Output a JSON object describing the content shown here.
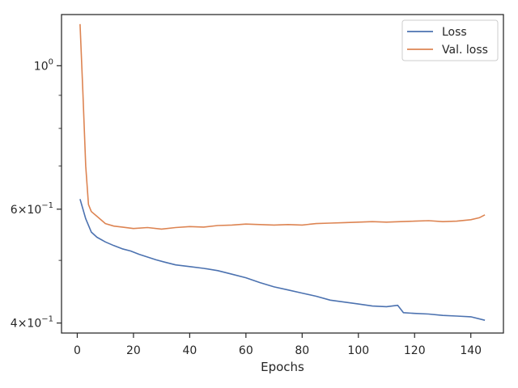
{
  "chart_data": {
    "type": "line",
    "title": "",
    "xlabel": "Epochs",
    "ylabel": "",
    "xlim": [
      -5.6,
      151.6
    ],
    "ylim": [
      0.386,
      1.2
    ],
    "yscale": "log",
    "grid": false,
    "legend_position": "top-right",
    "x_ticks": [
      0,
      20,
      40,
      60,
      80,
      100,
      120,
      140
    ],
    "x_tick_labels": [
      "0",
      "20",
      "40",
      "60",
      "80",
      "100",
      "120",
      "140"
    ],
    "y_major_ticks": [
      {
        "value": 1.0,
        "mantissa": "",
        "base": "10",
        "exp": "0"
      },
      {
        "value": 0.6,
        "mantissa": "6×",
        "base": "10",
        "exp": "−1"
      },
      {
        "value": 0.4,
        "mantissa": "4×",
        "base": "10",
        "exp": "−1"
      }
    ],
    "y_minor_ticks": [
      0.9,
      0.8,
      0.7,
      0.5
    ],
    "series": [
      {
        "name": "Loss",
        "color": "#4c72b0",
        "x": [
          1,
          3,
          5,
          7,
          10,
          13,
          16,
          19,
          22,
          25,
          28,
          31,
          35,
          40,
          45,
          50,
          55,
          60,
          65,
          70,
          75,
          80,
          85,
          90,
          95,
          100,
          105,
          110,
          114,
          116,
          120,
          125,
          130,
          135,
          140,
          145
        ],
        "y": [
          0.622,
          0.58,
          0.553,
          0.543,
          0.534,
          0.527,
          0.521,
          0.517,
          0.511,
          0.506,
          0.501,
          0.497,
          0.492,
          0.489,
          0.486,
          0.482,
          0.476,
          0.47,
          0.462,
          0.455,
          0.45,
          0.445,
          0.44,
          0.434,
          0.431,
          0.428,
          0.425,
          0.424,
          0.426,
          0.415,
          0.414,
          0.413,
          0.411,
          0.41,
          0.409,
          0.404
        ]
      },
      {
        "name": "Val. loss",
        "color": "#dd8452",
        "x": [
          1,
          2,
          3,
          4,
          5,
          7,
          10,
          13,
          16,
          20,
          25,
          30,
          35,
          40,
          45,
          50,
          55,
          60,
          65,
          70,
          75,
          80,
          85,
          90,
          95,
          100,
          105,
          110,
          115,
          120,
          125,
          130,
          135,
          140,
          143,
          145
        ],
        "y": [
          1.16,
          0.91,
          0.7,
          0.61,
          0.595,
          0.585,
          0.57,
          0.565,
          0.563,
          0.56,
          0.562,
          0.559,
          0.562,
          0.564,
          0.563,
          0.566,
          0.567,
          0.569,
          0.568,
          0.567,
          0.568,
          0.567,
          0.57,
          0.571,
          0.572,
          0.573,
          0.574,
          0.573,
          0.574,
          0.575,
          0.576,
          0.574,
          0.575,
          0.578,
          0.582,
          0.588
        ]
      }
    ]
  }
}
